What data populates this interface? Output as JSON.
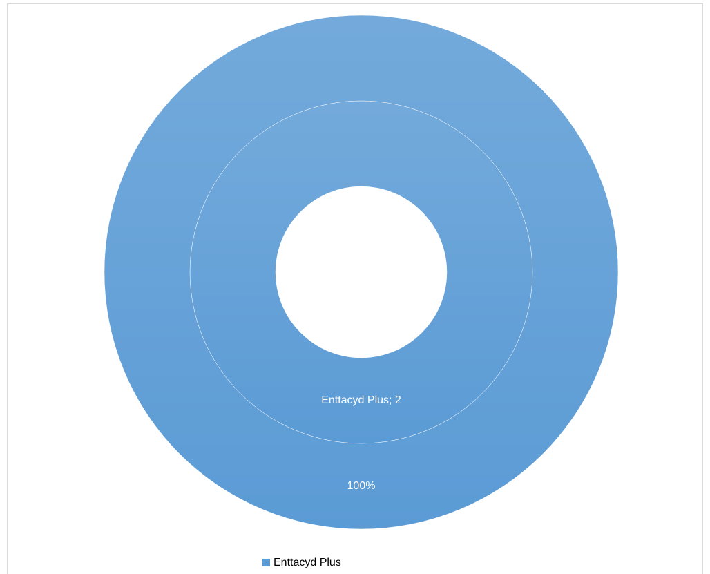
{
  "chart_data": {
    "type": "doughnut",
    "categories": [
      "Enttacyd Plus"
    ],
    "colors": [
      "#5b9bd5"
    ],
    "series": [
      {
        "values": [
          2
        ],
        "value_labels": [
          "Enttacyd Plus; 2"
        ]
      },
      {
        "values": [
          100
        ],
        "value_labels": [
          "100%"
        ]
      }
    ],
    "legend": "bottom"
  }
}
